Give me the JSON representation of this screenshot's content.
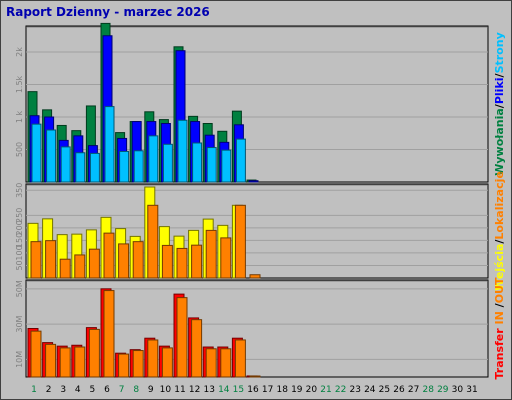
{
  "title": "Raport Dzienny -  marzec 2026",
  "colors": {
    "background": "#c0c0c0",
    "hits": "#008040",
    "files": "#0000ff",
    "pages": "#00c0ff",
    "visits": "#ffff00",
    "sites": "#ff8000",
    "kbin": "#ff0000",
    "kbout": "#ff8000",
    "weekend": "#008040",
    "weekday": "#000000"
  },
  "chart_data": [
    {
      "type": "bar",
      "name": "requests",
      "x": [
        1,
        2,
        3,
        4,
        5,
        6,
        7,
        8,
        9,
        10,
        11,
        12,
        13,
        14,
        15,
        16,
        17,
        18,
        19,
        20,
        21,
        22,
        23,
        24,
        25,
        26,
        27,
        28,
        29,
        30,
        31
      ],
      "yticks": [
        "500",
        "1 k",
        "1.5k",
        "2k"
      ],
      "ylim": [
        0,
        2400
      ],
      "legend": [
        "Wywołania",
        "Pliki",
        "Strony"
      ],
      "series": [
        {
          "name": "Wywołania",
          "values": [
            1390,
            1110,
            870,
            790,
            1170,
            2440,
            760,
            930,
            1080,
            960,
            2080,
            1010,
            900,
            780,
            1090,
            30,
            0,
            0,
            0,
            0,
            0,
            0,
            0,
            0,
            0,
            0,
            0,
            0,
            0,
            0,
            0
          ]
        },
        {
          "name": "Pliki",
          "values": [
            1020,
            1000,
            640,
            710,
            560,
            2250,
            670,
            930,
            930,
            900,
            2020,
            930,
            720,
            610,
            880,
            20,
            0,
            0,
            0,
            0,
            0,
            0,
            0,
            0,
            0,
            0,
            0,
            0,
            0,
            0,
            0
          ]
        },
        {
          "name": "Strony",
          "values": [
            890,
            800,
            540,
            450,
            440,
            1160,
            470,
            480,
            710,
            580,
            950,
            600,
            530,
            490,
            660,
            0,
            0,
            0,
            0,
            0,
            0,
            0,
            0,
            0,
            0,
            0,
            0,
            0,
            0,
            0,
            0
          ]
        }
      ]
    },
    {
      "type": "bar",
      "name": "visits",
      "x": [
        1,
        2,
        3,
        4,
        5,
        6,
        7,
        8,
        9,
        10,
        11,
        12,
        13,
        14,
        15,
        16,
        17,
        18,
        19,
        20,
        21,
        22,
        23,
        24,
        25,
        26,
        27,
        28,
        29,
        30,
        31
      ],
      "yticks": [
        "50",
        "100",
        "150",
        "200",
        "250",
        "350"
      ],
      "ylim": [
        0,
        375
      ],
      "legend": [
        "Wejścia",
        "Lokalizacje"
      ],
      "series": [
        {
          "name": "Wejścia",
          "values": [
            218,
            236,
            173,
            175,
            192,
            242,
            197,
            166,
            363,
            205,
            167,
            190,
            235,
            210,
            290,
            0,
            0,
            0,
            0,
            0,
            0,
            0,
            0,
            0,
            0,
            0,
            0,
            0,
            0,
            0,
            0
          ]
        },
        {
          "name": "Lokalizacje",
          "values": [
            145,
            149,
            75,
            92,
            115,
            179,
            136,
            145,
            290,
            130,
            118,
            131,
            190,
            160,
            290,
            13,
            0,
            0,
            0,
            0,
            0,
            0,
            0,
            0,
            0,
            0,
            0,
            0,
            0,
            0,
            0
          ]
        }
      ]
    },
    {
      "type": "bar",
      "name": "transfer",
      "x": [
        1,
        2,
        3,
        4,
        5,
        6,
        7,
        8,
        9,
        10,
        11,
        12,
        13,
        14,
        15,
        16,
        17,
        18,
        19,
        20,
        21,
        22,
        23,
        24,
        25,
        26,
        27,
        28,
        29,
        30,
        31
      ],
      "yticks": [
        "10M",
        "30M",
        "50M"
      ],
      "ylim": [
        0,
        55
      ],
      "legend": [
        "Transfer",
        "IN",
        "OUT"
      ],
      "series": [
        {
          "name": "IN",
          "values": [
            27.5,
            19.5,
            17.5,
            18.0,
            28.0,
            50.0,
            13.5,
            15.5,
            22.0,
            17.5,
            47.0,
            33.5,
            17.0,
            17.0,
            22.0,
            0.6,
            0,
            0,
            0,
            0,
            0,
            0,
            0,
            0,
            0,
            0,
            0,
            0,
            0,
            0,
            0
          ]
        },
        {
          "name": "OUT",
          "values": [
            26.0,
            18.5,
            16.5,
            17.0,
            27.0,
            49.0,
            13.0,
            15.0,
            21.0,
            16.5,
            45.0,
            32.5,
            16.0,
            16.0,
            21.0,
            0.4,
            0,
            0,
            0,
            0,
            0,
            0,
            0,
            0,
            0,
            0,
            0,
            0,
            0,
            0,
            0
          ]
        }
      ]
    }
  ],
  "weekend_days": [
    1,
    7,
    8,
    14,
    15,
    21,
    22,
    28,
    29
  ],
  "side_labels": {
    "panel1": [
      {
        "text": "Wywołania",
        "color": "#008040"
      },
      {
        "text": "/",
        "color": "#000000"
      },
      {
        "text": "Pliki",
        "color": "#0000ff"
      },
      {
        "text": "/",
        "color": "#000000"
      },
      {
        "text": "Strony",
        "color": "#00c0ff"
      }
    ],
    "panel2": [
      {
        "text": "Wejścia",
        "color": "#ffff00"
      },
      {
        "text": "/",
        "color": "#000000"
      },
      {
        "text": "Lokalizacje",
        "color": "#ff8000"
      }
    ],
    "panel3": [
      {
        "text": "Transfer",
        "color": "#ff0000"
      },
      {
        "text": " IN ",
        "color": "#ff8000"
      },
      {
        "text": "/",
        "color": "#000000"
      },
      {
        "text": "OUT",
        "color": "#ff8000"
      }
    ]
  }
}
